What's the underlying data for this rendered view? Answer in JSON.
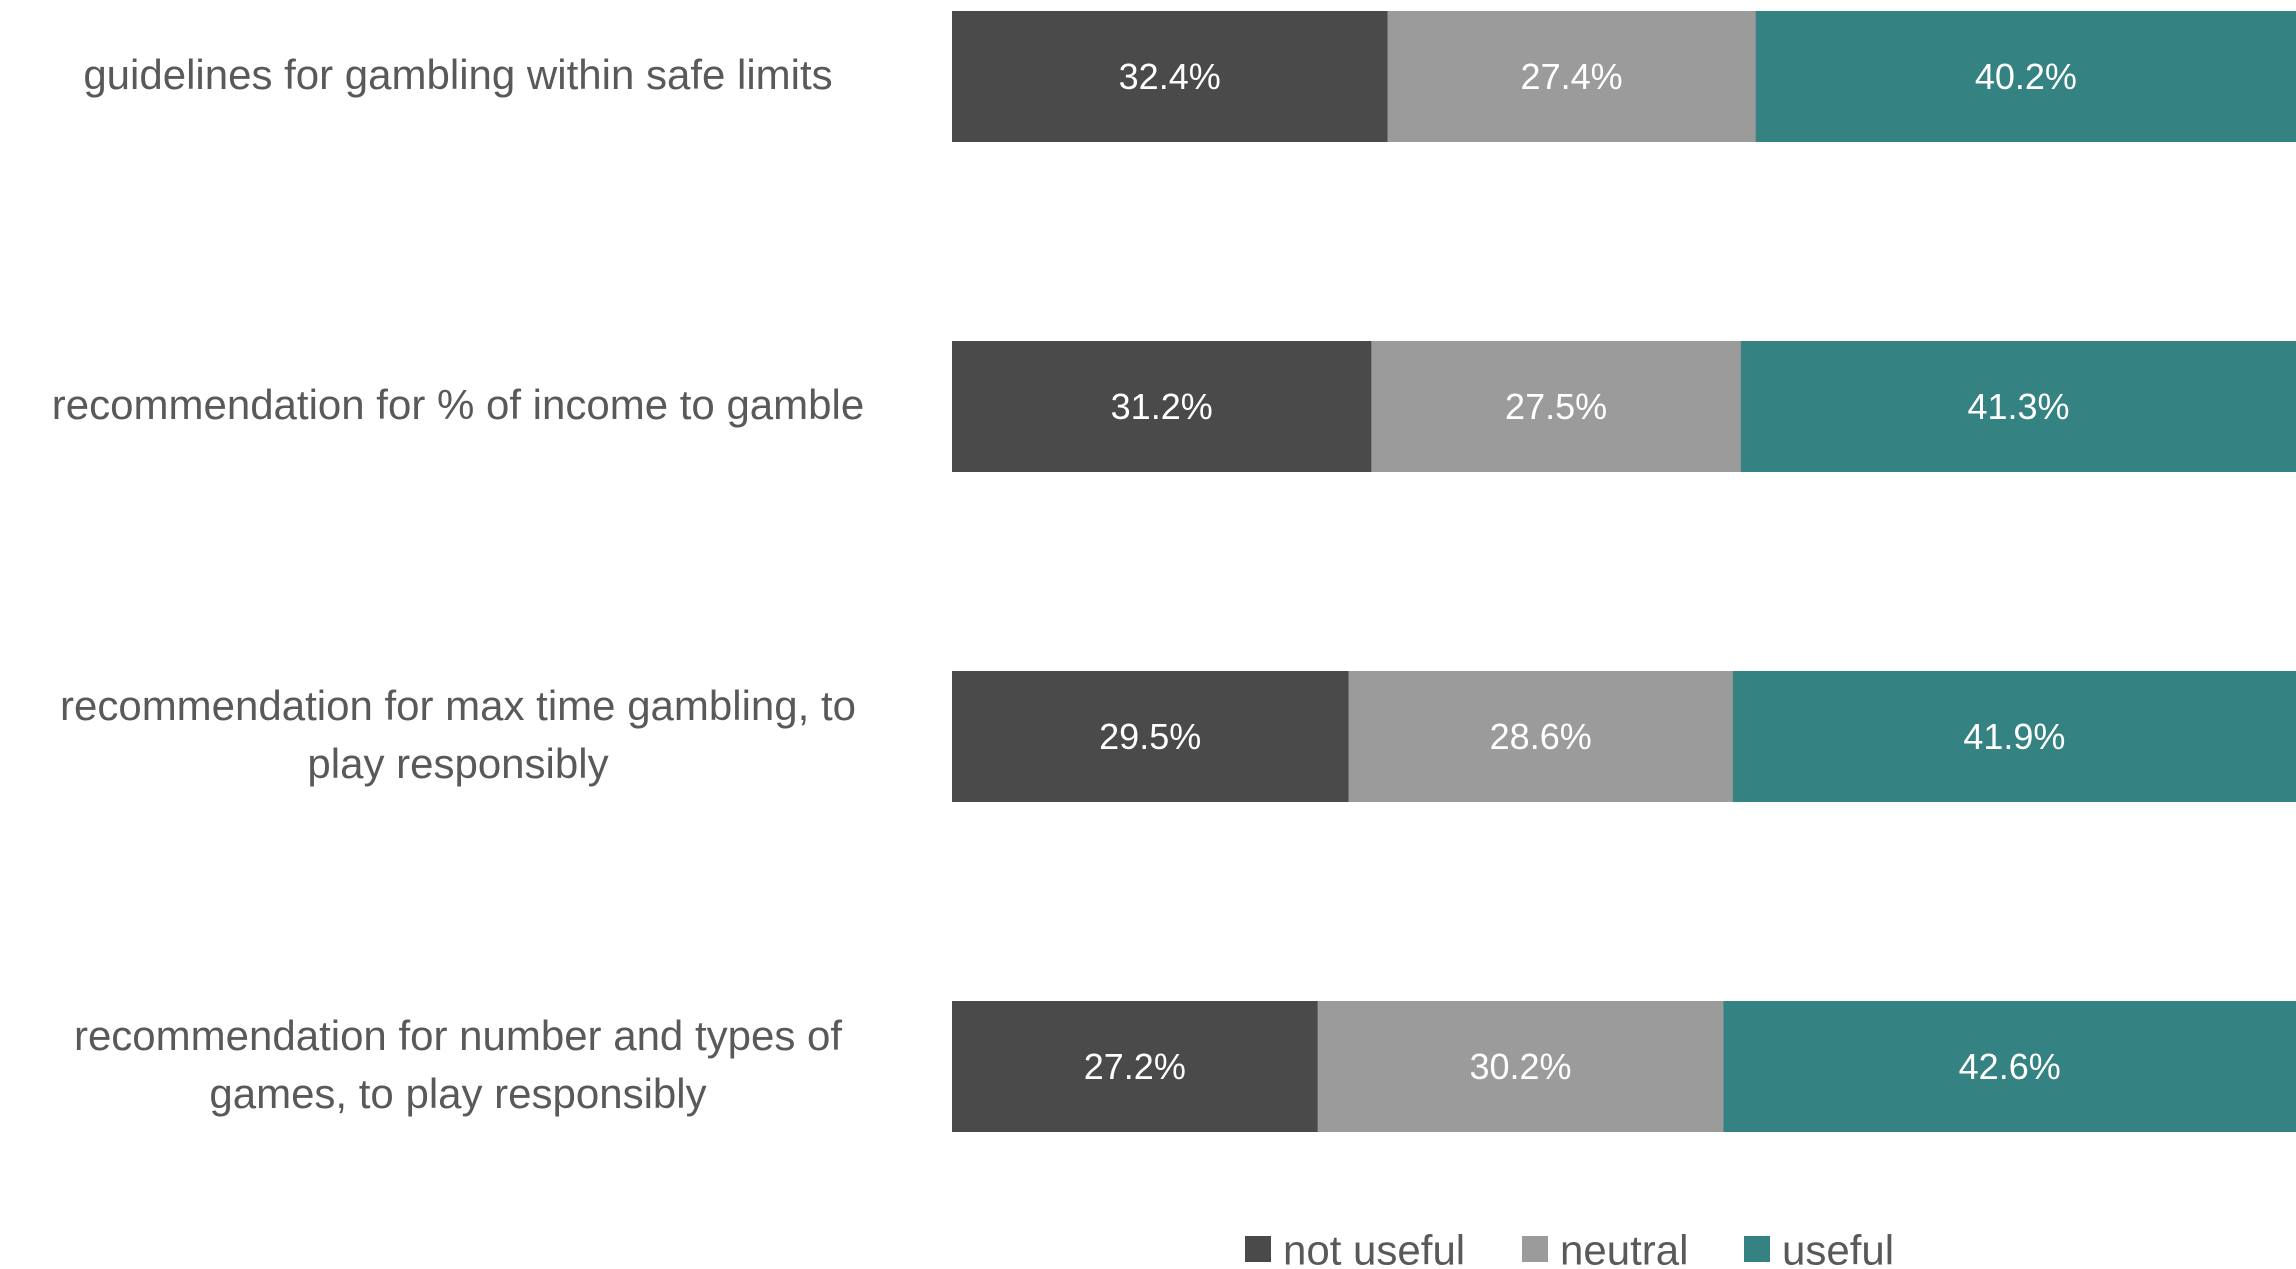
{
  "chart_data": {
    "type": "bar",
    "orientation": "horizontal",
    "stacked": "percent",
    "categories": [
      [
        "guidelines for gambling within safe limits"
      ],
      [
        "recommendation for % of income to gamble"
      ],
      [
        "recommendation for max time gambling, to",
        "play responsibly"
      ],
      [
        "recommendation for number and types of",
        "games, to play responsibly"
      ]
    ],
    "series": [
      {
        "name": "not useful",
        "color": "#4a4a4a",
        "values": [
          32.4,
          31.2,
          29.5,
          27.2
        ]
      },
      {
        "name": "neutral",
        "color": "#9b9b9b",
        "values": [
          27.4,
          27.5,
          28.6,
          30.2
        ]
      },
      {
        "name": "useful",
        "color": "#358282",
        "values": [
          40.2,
          41.3,
          41.9,
          42.6
        ]
      }
    ],
    "value_suffix": "%",
    "xlim": [
      0,
      100
    ],
    "grid": false,
    "legend": "bottom"
  }
}
